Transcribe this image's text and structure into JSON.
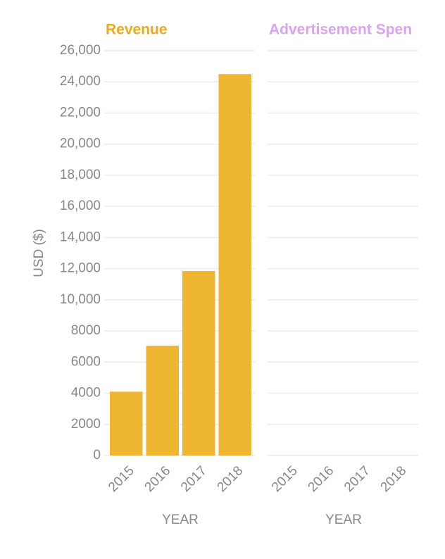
{
  "chart_data": [
    {
      "type": "bar",
      "title": "Revenue",
      "title_color": "#f0a81c",
      "y_label": "USD ($)",
      "x_label": "YEAR",
      "categories": [
        "2015",
        "2016",
        "2017",
        "2018"
      ],
      "values": [
        4100,
        7050,
        11850,
        24500
      ],
      "color": "#efb731",
      "ylim": [
        0,
        26000
      ],
      "yticks": [
        0,
        2000,
        4000,
        6000,
        8000,
        {
          "value": 10000,
          "label": "10,000"
        },
        {
          "value": 12000,
          "label": "12,000"
        },
        {
          "value": 14000,
          "label": "14,000"
        },
        {
          "value": 16000,
          "label": "16,000"
        },
        {
          "value": 18000,
          "label": "18,000"
        },
        {
          "value": 20000,
          "label": "20,000"
        },
        {
          "value": 22000,
          "label": "22,000"
        },
        {
          "value": 24000,
          "label": "24,000"
        },
        {
          "value": 26000,
          "label": "26,000"
        }
      ],
      "grid": true
    },
    {
      "type": "bar",
      "title": "Advertisement Spen",
      "title_color": "#d9a2f3",
      "x_label": "YEAR",
      "categories": [
        "2015",
        "2016",
        "2017",
        "2018"
      ],
      "values": [
        null,
        null,
        null,
        null
      ],
      "color": "#d9a2f3",
      "ylim": [
        0,
        26000
      ],
      "yticks": [
        0,
        2000,
        4000,
        6000,
        8000,
        10000,
        12000,
        14000,
        16000,
        18000,
        20000,
        22000,
        24000,
        26000
      ],
      "grid": true
    }
  ]
}
